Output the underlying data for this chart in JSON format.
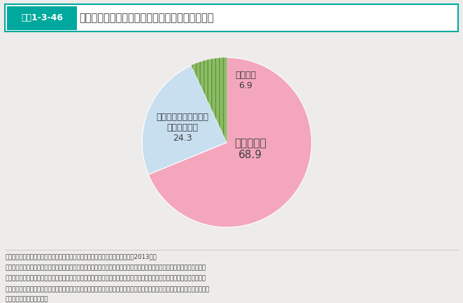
{
  "title_label": "図表1-3-46",
  "title_main": "妊娠と年齢の関係について知っている若者の割合",
  "slices": [
    68.9,
    24.3,
    6.9
  ],
  "colors": [
    "#f4a7bc",
    "#c8dff0",
    "#8fbb6a"
  ],
  "startangle": 90,
  "label_shitteiru": "知っている\n68.9",
  "label_kiita": "聞いたことがあるが、\nよく知らない\n24.3",
  "label_shiranai": "知らない\n6.9",
  "note_line1": "資料：厚生労働省政策統括官付政策評価官室委託「若者の意識に関する調査」（2013年）",
  "note_line2": "（設問）妊娠と年齢の関係では、男女ともに年齢が高くなるほど妊娠する確率が下がることや、妊婦の年齢が高くなるほど自",
  "note_line3": "　　　　然流産率が高くなること、妊娠中の異常（産科合併症）の発症頻度が高くなること、子どもの染色体異常のリスクが",
  "note_line4": "　　　　高くなることなどが分かっています。このような妊娠と年齢の関係についてご存じですか。当てはまるものを一つを選",
  "note_line5": "　　　　択してください。",
  "background_color": "#edecea",
  "header_teal": "#00a89d",
  "text_dark": "#3d3d3d",
  "text_label_white": "#ffffff"
}
